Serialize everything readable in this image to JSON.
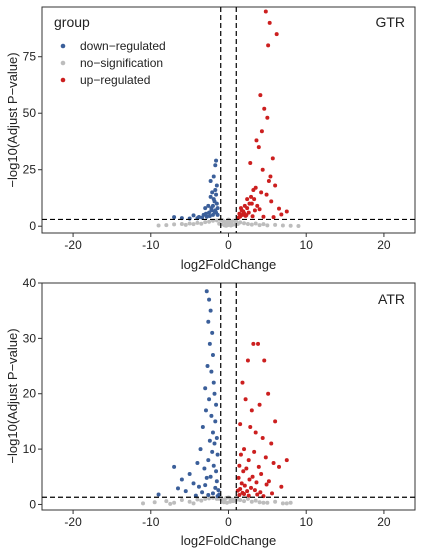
{
  "colors": {
    "down": "#3b5f9a",
    "none": "#bdbdbd",
    "up": "#cc1f1f",
    "axis": "#333333"
  },
  "chart_data": [
    {
      "type": "scatter",
      "panel_label": "GTR",
      "xlabel": "log2FoldChange",
      "ylabel": "−log10(Adjust P−value)",
      "xlim": [
        -24,
        24
      ],
      "ylim": [
        -3,
        97
      ],
      "x_ticks": [
        -20,
        -10,
        0,
        10,
        20
      ],
      "y_ticks": [
        0,
        25,
        50,
        75
      ],
      "vlines": [
        -1,
        1
      ],
      "hline": 3,
      "legend": {
        "title": "group",
        "position": "top-left",
        "items": [
          {
            "label": "down−regulated",
            "color": "#3b5f9a"
          },
          {
            "label": "no−signification",
            "color": "#bdbdbd"
          },
          {
            "label": "up−regulated",
            "color": "#cc1f1f"
          }
        ]
      },
      "series": [
        {
          "name": "down−regulated",
          "color": "#3b5f9a",
          "x": [
            -1.6,
            -1.7,
            -1.9,
            -1.5,
            -2.1,
            -2.3,
            -1.8,
            -2.6,
            -3.0,
            -2.2,
            -1.6,
            -1.4,
            -2.0,
            -2.4,
            -2.8,
            -3.4,
            -4.0,
            -5.0,
            -6.0,
            -7.0,
            -1.9,
            -1.5,
            -2.2,
            -1.7,
            -1.8,
            -2.5,
            -3.2,
            -1.6,
            -2.0,
            -1.4,
            -2.9,
            -4.5,
            -3.8,
            -1.7,
            -2.3
          ],
          "y": [
            29,
            27,
            22,
            18,
            15,
            13,
            11,
            9,
            8,
            7,
            6,
            5,
            5,
            4.5,
            4.2,
            3.8,
            3.5,
            3.4,
            3.6,
            4.0,
            12,
            10,
            8,
            7,
            6.5,
            6,
            5,
            14,
            9,
            8,
            5.5,
            4.8,
            4.1,
            16,
            20
          ]
        },
        {
          "name": "no−signification",
          "color": "#bdbdbd",
          "x": [
            -9.0,
            -8.0,
            -7.0,
            -6.0,
            -5.5,
            -5.0,
            -4.5,
            -4.0,
            -3.5,
            -3.0,
            -2.5,
            -2.0,
            -1.5,
            -1.0,
            -0.8,
            -0.6,
            -0.4,
            -0.2,
            0.0,
            0.2,
            0.4,
            0.6,
            0.8,
            1.0,
            1.5,
            2.0,
            2.5,
            3.0,
            3.5,
            4.0,
            4.5,
            5.0,
            6.0,
            7.0,
            8.0,
            9.0,
            -0.5,
            0.5,
            -0.3,
            0.3,
            -1.2,
            1.2,
            -0.9,
            0.9,
            -0.1,
            0.1
          ],
          "y": [
            0.3,
            0.5,
            0.8,
            1.0,
            0.6,
            1.2,
            0.9,
            1.5,
            1.1,
            1.8,
            2.0,
            2.4,
            2.6,
            2.8,
            2.7,
            2.2,
            1.6,
            1.9,
            2.9,
            1.4,
            2.1,
            2.5,
            2.3,
            2.0,
            1.7,
            1.3,
            1.0,
            0.7,
            1.2,
            0.5,
            0.9,
            0.4,
            0.6,
            0.3,
            0.2,
            0.1,
            0.4,
            0.6,
            0.2,
            0.3,
            1.1,
            1.0,
            0.8,
            0.7,
            0.5,
            0.9
          ]
        },
        {
          "name": "up−regulated",
          "color": "#cc1f1f",
          "x": [
            4.8,
            5.3,
            5.1,
            6.2,
            4.1,
            4.6,
            5.0,
            4.3,
            3.6,
            3.9,
            5.7,
            2.8,
            4.4,
            5.2,
            6.0,
            3.2,
            4.9,
            2.4,
            5.5,
            3.0,
            2.1,
            1.6,
            4.0,
            3.4,
            1.9,
            2.6,
            1.4,
            1.8,
            2.2,
            3.1,
            4.5,
            5.8,
            6.8,
            7.5,
            2.9,
            3.7,
            1.5,
            2.0,
            2.4,
            3.3,
            4.2,
            5.4,
            1.7,
            2.7,
            3.5,
            6.5,
            2.3,
            1.3
          ],
          "y": [
            95,
            90,
            80,
            85,
            58,
            52,
            48,
            42,
            38,
            35,
            30,
            28,
            25,
            20,
            18,
            16,
            14,
            12,
            11,
            10,
            9,
            8,
            7.5,
            7,
            6.5,
            6,
            5.5,
            5,
            4.6,
            4.4,
            4.2,
            4.0,
            5.2,
            6.5,
            13,
            9,
            4.3,
            5.8,
            8,
            12,
            15,
            22,
            7,
            10,
            17,
            7.8,
            4.9,
            3.8
          ]
        }
      ]
    },
    {
      "type": "scatter",
      "panel_label": "ATR",
      "xlabel": "log2FoldChange",
      "ylabel": "−log10(Adjust P−value)",
      "xlim": [
        -24,
        24
      ],
      "ylim": [
        -1,
        40
      ],
      "x_ticks": [
        -20,
        -10,
        0,
        10,
        20
      ],
      "y_ticks": [
        0,
        10,
        20,
        30,
        40
      ],
      "vlines": [
        -1,
        1
      ],
      "hline": 1.3,
      "series": [
        {
          "name": "down−regulated",
          "color": "#3b5f9a",
          "x": [
            -2.8,
            -2.5,
            -2.3,
            -2.6,
            -2.1,
            -2.4,
            -2.0,
            -2.7,
            -2.2,
            -1.9,
            -3.0,
            -1.8,
            -2.5,
            -1.6,
            -2.9,
            -2.2,
            -1.7,
            -3.3,
            -2.0,
            -1.5,
            -2.4,
            -1.8,
            -3.6,
            -2.1,
            -1.4,
            -2.6,
            -4.0,
            -1.9,
            -3.1,
            -1.6,
            -5.0,
            -2.3,
            -6.0,
            -1.5,
            -4.5,
            -7.0,
            -9.0,
            -3.8,
            -1.3,
            -2.8,
            -5.5,
            -1.7,
            -3.4,
            -2.0,
            -1.2,
            -4.2,
            -2.6,
            -1.4,
            -6.5,
            -3.0
          ],
          "y": [
            38.5,
            37,
            35,
            33,
            31,
            29,
            27,
            25,
            24,
            22,
            21,
            20,
            19,
            18,
            17,
            16,
            15,
            14,
            13,
            12,
            11.5,
            11,
            10,
            9.5,
            9,
            8,
            7.5,
            7,
            6.5,
            6,
            5.5,
            5,
            4.5,
            4.2,
            3.8,
            6.8,
            1.8,
            3.2,
            2.6,
            4.8,
            2.4,
            3.0,
            2.2,
            2.0,
            1.8,
            1.6,
            1.7,
            1.5,
            2.9,
            3.5
          ]
        },
        {
          "name": "no−signification",
          "color": "#bdbdbd",
          "x": [
            -11.0,
            -9.5,
            -8.0,
            -7.0,
            -6.0,
            -5.0,
            -4.0,
            -3.5,
            -3.0,
            -2.5,
            -2.0,
            -1.5,
            -1.0,
            -0.8,
            -0.5,
            -0.3,
            0.0,
            0.3,
            0.5,
            0.8,
            1.0,
            1.5,
            2.0,
            2.5,
            3.0,
            3.5,
            4.0,
            5.0,
            6.0,
            7.0,
            8.0,
            -0.6,
            0.6,
            -0.2,
            0.2,
            -1.2,
            1.2,
            -4.5,
            4.5,
            -7.5,
            7.5
          ],
          "y": [
            0.2,
            0.4,
            0.6,
            0.3,
            0.8,
            0.5,
            0.9,
            0.7,
            1.0,
            1.1,
            1.2,
            1.0,
            1.1,
            0.9,
            0.8,
            1.2,
            1.25,
            1.0,
            0.9,
            0.7,
            1.1,
            0.8,
            0.6,
            1.0,
            0.5,
            0.7,
            0.4,
            0.3,
            0.5,
            0.2,
            0.3,
            0.4,
            0.6,
            0.3,
            0.5,
            1.0,
            0.9,
            0.2,
            0.3,
            0.1,
            0.2
          ]
        },
        {
          "name": "up−regulated",
          "color": "#cc1f1f",
          "x": [
            3.2,
            3.8,
            2.5,
            4.6,
            1.8,
            5.1,
            2.2,
            4.0,
            3.0,
            6.0,
            1.5,
            2.8,
            3.5,
            4.4,
            5.5,
            7.5,
            2.0,
            3.3,
            1.6,
            4.8,
            2.6,
            5.8,
            1.4,
            3.9,
            2.3,
            6.5,
            1.9,
            4.2,
            3.1,
            1.3,
            2.7,
            5.2,
            3.6,
            1.7,
            4.9,
            2.1,
            6.8,
            2.9,
            1.5,
            3.4,
            1.2,
            2.4,
            4.1,
            1.8,
            5.6,
            2.0,
            3.7,
            1.4,
            2.6,
            4.5
          ],
          "y": [
            29,
            29,
            26,
            26,
            22,
            20,
            19,
            18,
            17,
            15,
            14.5,
            14,
            13,
            12,
            11,
            8,
            10,
            9.5,
            9,
            8.5,
            8,
            7.5,
            7,
            6.8,
            6.5,
            6.8,
            6,
            5.5,
            5,
            4.8,
            4.5,
            4.2,
            4.0,
            3.8,
            3.6,
            3.4,
            3.2,
            3.0,
            2.8,
            2.6,
            2.5,
            2.4,
            2.2,
            2.1,
            2.0,
            1.9,
            1.8,
            1.7,
            1.6,
            1.5
          ]
        }
      ]
    }
  ]
}
